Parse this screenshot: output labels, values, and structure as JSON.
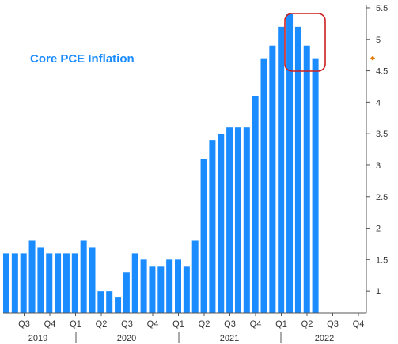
{
  "chart_data": {
    "type": "bar",
    "title": "Core PCE Inflation",
    "series": [
      {
        "values": [
          1.6,
          1.6,
          1.6,
          1.8,
          1.7,
          1.6,
          1.6,
          1.6,
          1.6,
          1.8,
          1.7,
          1.0,
          1.0,
          0.9,
          1.3,
          1.6,
          1.5,
          1.4,
          1.4,
          1.5,
          1.5,
          1.4,
          1.8,
          3.1,
          3.4,
          3.5,
          3.6,
          3.6,
          3.6,
          4.1,
          4.7,
          4.9,
          5.2,
          5.4,
          5.2,
          4.9,
          4.7
        ]
      }
    ],
    "x_quarter_labels": [
      "Q3",
      "Q4",
      "Q1",
      "Q2",
      "Q3",
      "Q4",
      "Q1",
      "Q2",
      "Q3",
      "Q4",
      "Q1",
      "Q2",
      "Q3",
      "Q4"
    ],
    "x_year_labels": [
      "2019",
      "2020",
      "2021",
      "2022"
    ],
    "y_ticks": [
      "1",
      "1.5",
      "2",
      "2.5",
      "3",
      "3.5",
      "4",
      "4.5",
      "5",
      "5.5"
    ],
    "ylim": [
      0.65,
      5.55
    ],
    "y_axis_position": "right",
    "grid": false,
    "last_value_marker": 4.7,
    "highlight": "rounded box around the last five bars",
    "colors": {
      "bar": "#1a8cff",
      "title": "#1a8cff",
      "highlight": "#cc1f1f",
      "marker": "#e07b00",
      "axis": "#555555"
    }
  }
}
